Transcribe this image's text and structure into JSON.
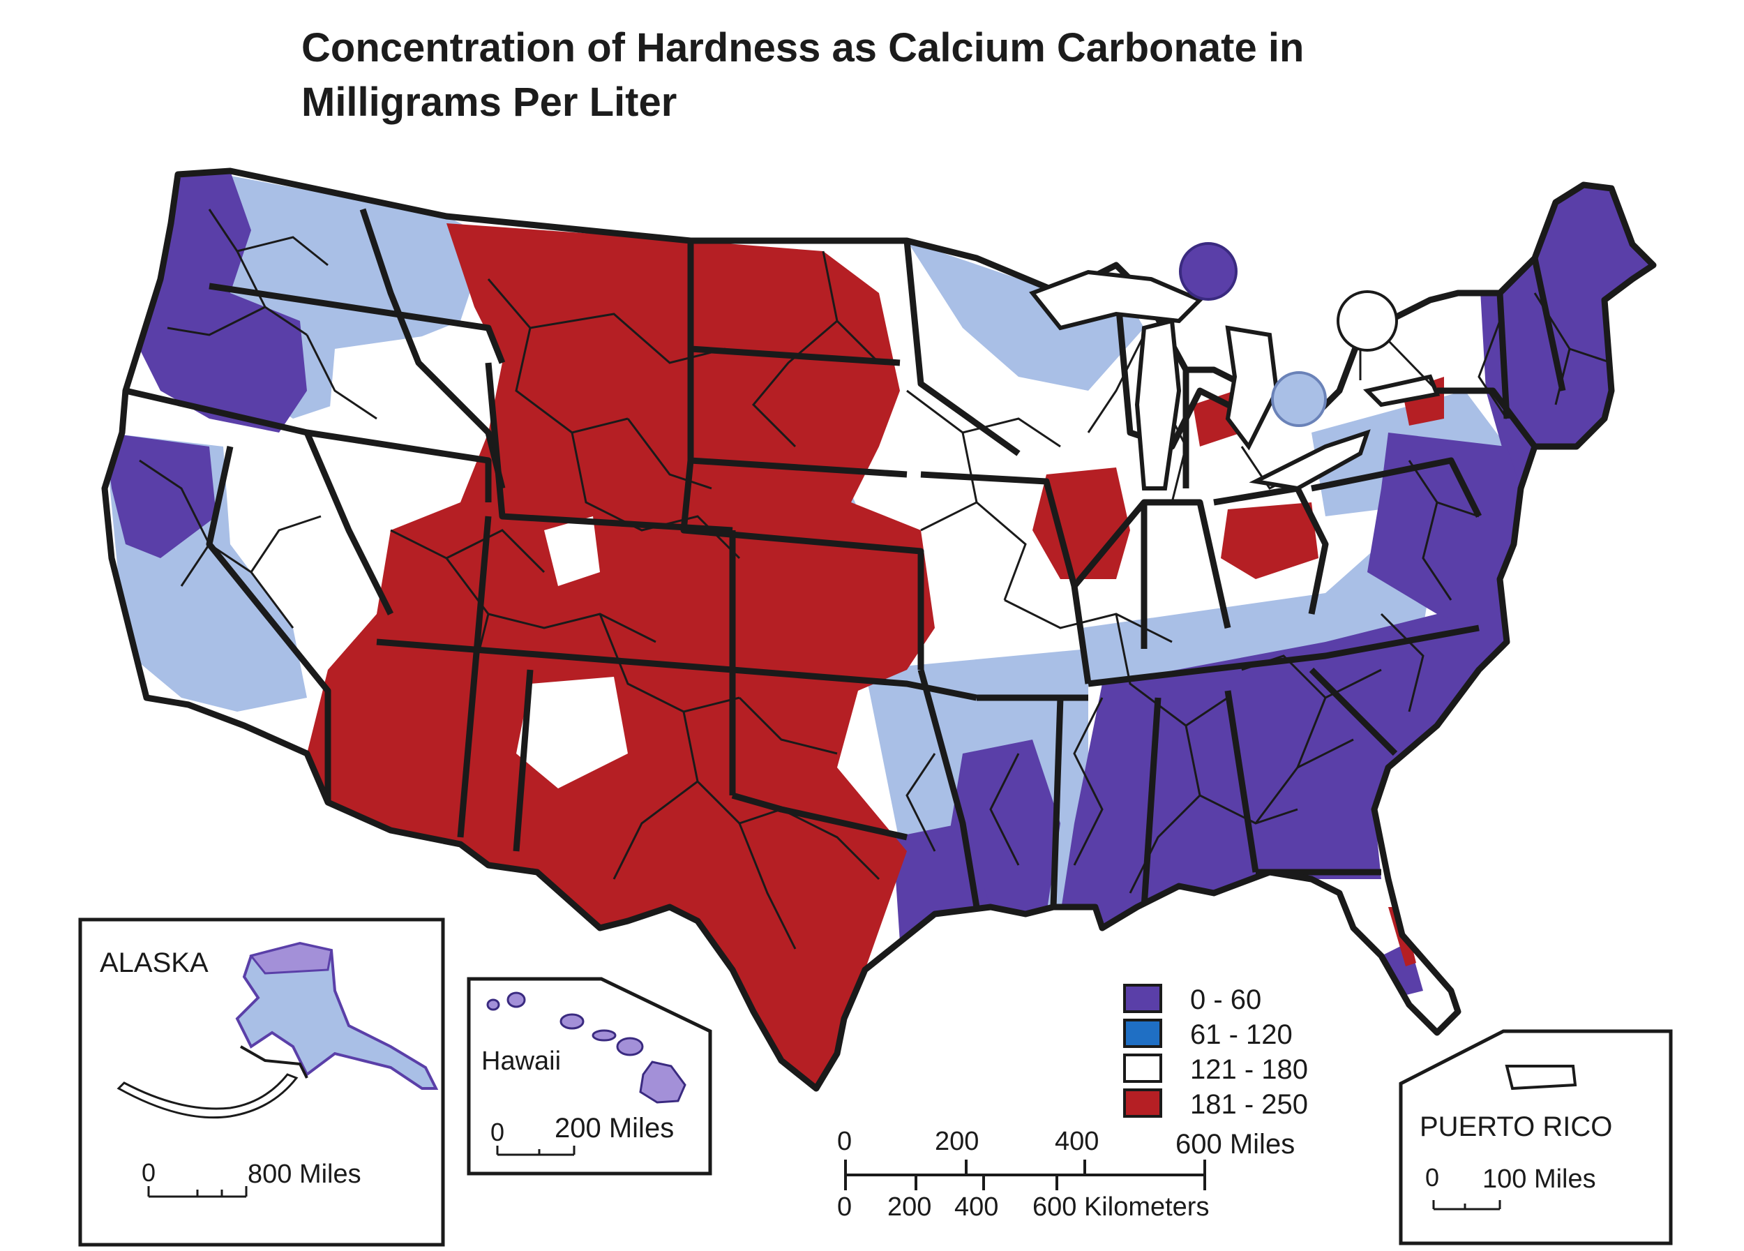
{
  "title": {
    "line1": "Concentration of Hardness as Calcium Carbonate in",
    "line2": "Milligrams Per Liter"
  },
  "legend": {
    "items": [
      {
        "label": "0 - 60",
        "color": "#5a3fa8"
      },
      {
        "label": "61 - 120",
        "color": "#1f6fc4"
      },
      {
        "label": "121 - 180",
        "color": "#ffffff"
      },
      {
        "label": "181 - 250",
        "color": "#b51f24"
      }
    ]
  },
  "colors": {
    "very_soft": "#5a3fa8",
    "soft_light": "#a9bfe6",
    "moderate": "#ffffff",
    "hard": "#b51f24",
    "border": "#1a1a1a"
  },
  "insets": {
    "alaska": {
      "label": "ALASKA",
      "scale_zero": "0",
      "scale_label": "800 Miles"
    },
    "hawaii": {
      "label": "Hawaii",
      "scale_zero": "0",
      "scale_label": "200 Miles"
    },
    "puerto_rico": {
      "label": "PUERTO RICO",
      "scale_zero": "0",
      "scale_label": "100 Miles"
    }
  },
  "scale_bar": {
    "miles_ticks": [
      "0",
      "200",
      "400",
      "600 Miles"
    ],
    "km_ticks": [
      "0",
      "200",
      "400",
      "600 Kilometers"
    ]
  }
}
